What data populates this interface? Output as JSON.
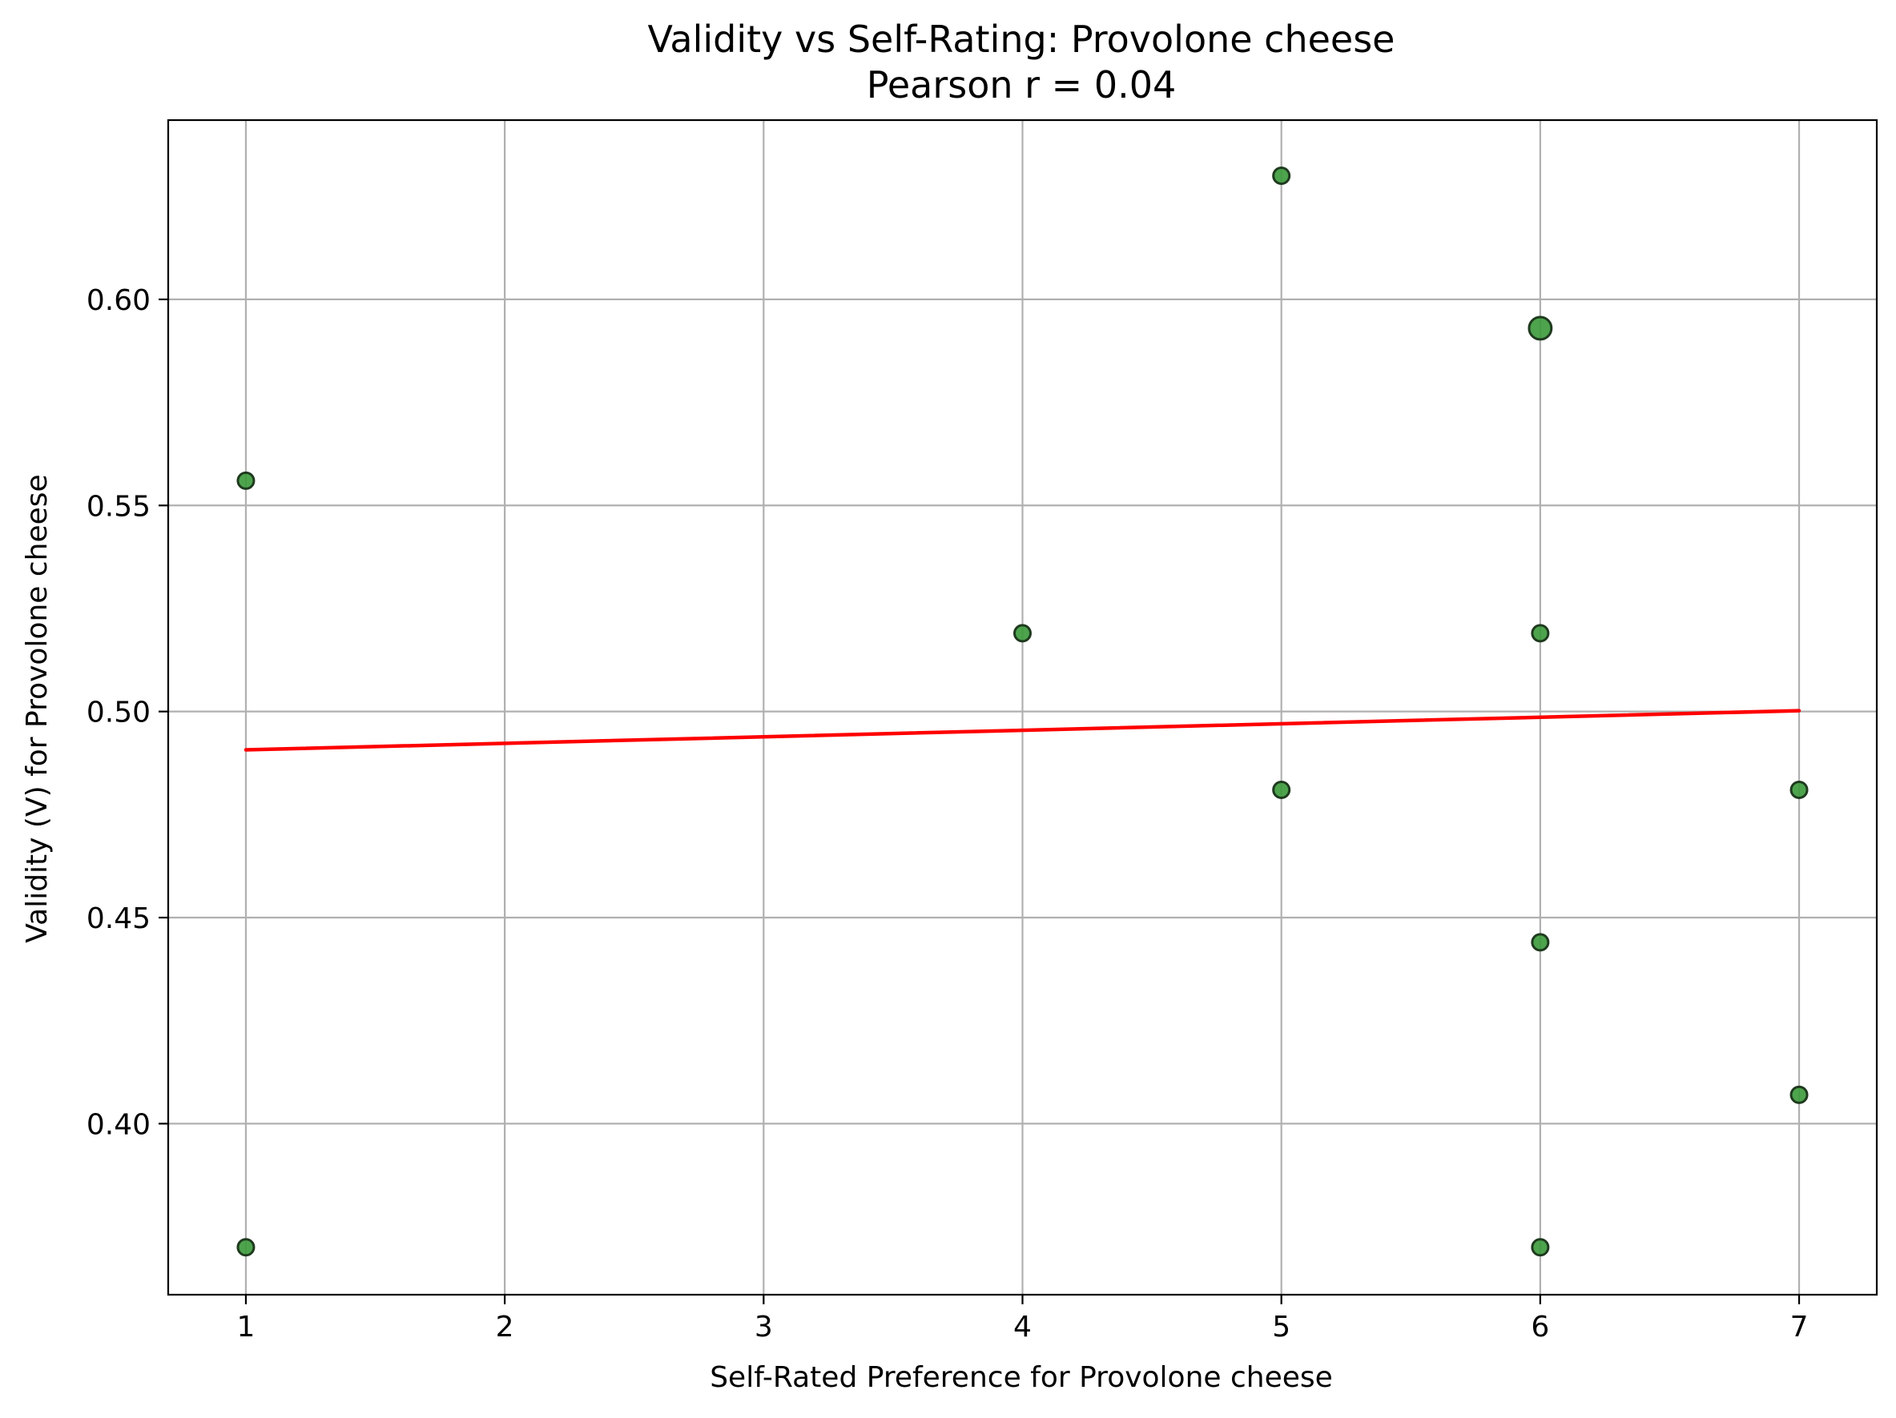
{
  "chart_data": {
    "type": "scatter",
    "title": "Validity vs Self-Rating: Provolone cheese",
    "subtitle": "Pearson r = 0.04",
    "xlabel": "Self-Rated Preference for Provolone cheese",
    "ylabel": "Validity (V) for Provolone cheese",
    "xlim": [
      0.7,
      7.3
    ],
    "ylim": [
      0.3585,
      0.6435
    ],
    "x_ticks": [
      1,
      2,
      3,
      4,
      5,
      6,
      7
    ],
    "x_tick_labels": [
      "1",
      "2",
      "3",
      "4",
      "5",
      "6",
      "7"
    ],
    "y_ticks": [
      0.4,
      0.45,
      0.5,
      0.55,
      0.6
    ],
    "y_tick_labels": [
      "0.40",
      "0.45",
      "0.50",
      "0.55",
      "0.60"
    ],
    "grid": true,
    "legend": "none",
    "points": [
      {
        "x": 1,
        "y": 0.556,
        "count": 1
      },
      {
        "x": 1,
        "y": 0.37,
        "count": 1
      },
      {
        "x": 4,
        "y": 0.519,
        "count": 1
      },
      {
        "x": 5,
        "y": 0.63,
        "count": 1
      },
      {
        "x": 5,
        "y": 0.481,
        "count": 1
      },
      {
        "x": 6,
        "y": 0.593,
        "count": 2
      },
      {
        "x": 6,
        "y": 0.519,
        "count": 1
      },
      {
        "x": 6,
        "y": 0.444,
        "count": 1
      },
      {
        "x": 6,
        "y": 0.37,
        "count": 1
      },
      {
        "x": 7,
        "y": 0.481,
        "count": 1
      },
      {
        "x": 7,
        "y": 0.407,
        "count": 1
      }
    ],
    "trend_line": {
      "x": [
        1,
        7
      ],
      "y": [
        0.4907,
        0.5002
      ]
    },
    "colors": {
      "point_fill": "#3a9a3a",
      "point_edge": "#1f3a1f",
      "trend_line": "#ff0000",
      "grid": "#b0b0b0",
      "axes": "#000000"
    }
  }
}
